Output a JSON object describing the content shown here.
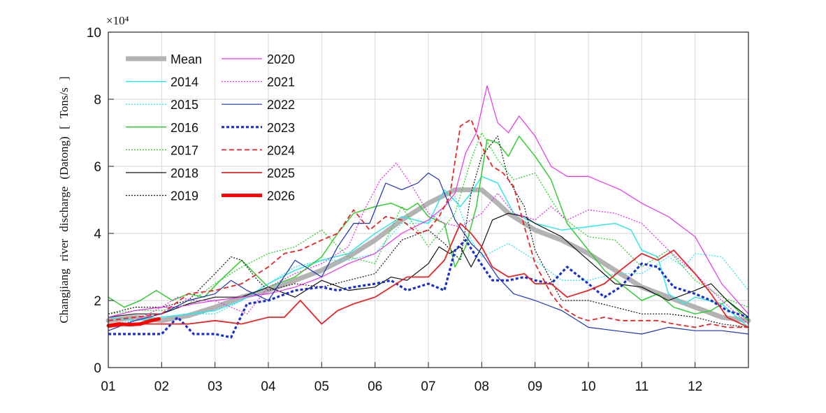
{
  "chart_data": {
    "type": "line",
    "ylabel": "Changjiang river discharge (Datong) [ Tons/s ]",
    "y_multiplier": "×10⁴",
    "xlim": [
      0,
      12
    ],
    "ylim": [
      0,
      10
    ],
    "x_ticks": [
      "01",
      "02",
      "03",
      "04",
      "05",
      "06",
      "07",
      "08",
      "09",
      "10",
      "11",
      "12"
    ],
    "y_ticks": [
      "0",
      "2",
      "4",
      "6",
      "8",
      "10"
    ],
    "grid": true,
    "legend_position": "top-left",
    "series": [
      {
        "name": "Mean",
        "color": "#b3b3b3",
        "width": 7,
        "dash": "",
        "x": [
          0,
          0.5,
          1,
          1.5,
          2,
          2.5,
          3,
          3.5,
          4,
          4.5,
          5,
          5.5,
          6,
          6.5,
          7,
          7.3,
          7.5,
          7.8,
          8,
          8.5,
          9,
          9.5,
          10,
          10.5,
          11,
          11.5,
          12
        ],
        "y": [
          1.4,
          1.5,
          1.4,
          1.55,
          1.8,
          2.1,
          2.3,
          2.6,
          2.9,
          3.3,
          3.8,
          4.4,
          4.9,
          5.3,
          5.3,
          4.9,
          4.6,
          4.3,
          4.1,
          3.8,
          3.4,
          2.9,
          2.4,
          2.1,
          1.8,
          1.5,
          1.4
        ]
      },
      {
        "name": "2014",
        "color": "#33e6e6",
        "width": 1.5,
        "dash": "",
        "x": [
          0,
          0.5,
          1,
          1.5,
          2,
          2.5,
          3,
          3.5,
          4,
          4.5,
          5,
          5.5,
          6,
          6.3,
          6.6,
          6.8,
          7,
          7.3,
          7.6,
          8,
          8.5,
          9,
          9.5,
          9.8,
          10,
          10.3,
          10.5,
          10.8,
          11,
          11.5,
          12
        ],
        "y": [
          1.5,
          1.4,
          1.5,
          1.6,
          1.7,
          2.0,
          2.5,
          2.9,
          3.2,
          3.4,
          4.0,
          4.5,
          4.3,
          5.3,
          4.8,
          5.2,
          5.7,
          5.5,
          4.6,
          4.3,
          4.1,
          4.2,
          4.3,
          4.1,
          3.5,
          3.3,
          2.2,
          1.9,
          2.1,
          1.9,
          1.2
        ]
      },
      {
        "name": "2015",
        "color": "#33e6e6",
        "width": 1.3,
        "dash": "2 2",
        "x": [
          0,
          0.5,
          1,
          1.5,
          2,
          2.5,
          3,
          3.5,
          4,
          4.5,
          5,
          5.5,
          6,
          6.5,
          6.8,
          7,
          7.5,
          8,
          8.5,
          9,
          9.5,
          10,
          10.3,
          10.5,
          10.8,
          11,
          11.5,
          11.8,
          12
        ],
        "y": [
          1.3,
          1.4,
          1.5,
          1.6,
          1.6,
          2.0,
          2.5,
          3.0,
          3.2,
          3.2,
          3.4,
          4.3,
          4.3,
          5.1,
          3.8,
          3.3,
          3.7,
          3.2,
          2.6,
          2.6,
          2.8,
          2.8,
          3.1,
          3.3,
          3.0,
          3.4,
          3.3,
          2.7,
          2.3
        ]
      },
      {
        "name": "2016",
        "color": "#33cc33",
        "width": 1.5,
        "dash": "",
        "x": [
          0,
          0.3,
          0.6,
          0.9,
          1.2,
          1.5,
          1.8,
          2.1,
          2.5,
          3,
          3.5,
          4,
          4.3,
          4.6,
          5,
          5.3,
          5.6,
          5.8,
          6,
          6.3,
          6.5,
          6.7,
          6.9,
          7.1,
          7.3,
          7.5,
          7.7,
          8,
          8.3,
          8.6,
          9,
          9.3,
          9.6,
          10,
          10.3,
          10.6,
          11,
          11.3,
          11.6,
          12
        ],
        "y": [
          2.1,
          1.8,
          2.0,
          2.3,
          2.0,
          2.2,
          2.1,
          2.6,
          3.2,
          2.4,
          2.7,
          3.3,
          4.0,
          4.6,
          4.8,
          4.9,
          4.7,
          4.9,
          4.5,
          4.3,
          3.0,
          3.6,
          4.8,
          6.8,
          6.7,
          6.3,
          6.9,
          6.3,
          5.6,
          4.3,
          3.5,
          2.9,
          2.5,
          2.0,
          2.2,
          1.8,
          1.6,
          1.7,
          2.0,
          1.4
        ]
      },
      {
        "name": "2017",
        "color": "#33cc33",
        "width": 1.3,
        "dash": "2 2",
        "x": [
          0,
          0.5,
          1,
          1.5,
          2,
          2.5,
          3,
          3.5,
          4,
          4.5,
          5,
          5.5,
          6,
          6.5,
          6.8,
          7,
          7.3,
          7.6,
          8,
          8.5,
          9,
          9.5,
          10,
          10.5,
          11,
          11.5,
          12
        ],
        "y": [
          1.6,
          1.7,
          1.7,
          1.9,
          2.5,
          3.0,
          3.4,
          3.6,
          4.1,
          3.3,
          3.1,
          4.8,
          3.6,
          4.6,
          6.2,
          7.0,
          6.2,
          5.6,
          5.8,
          4.5,
          3.9,
          3.8,
          3.0,
          3.5,
          2.6,
          2.1,
          1.8
        ]
      },
      {
        "name": "2018",
        "color": "#111111",
        "width": 1.2,
        "dash": "",
        "x": [
          0,
          0.5,
          1,
          1.5,
          2,
          2.5,
          3,
          3.5,
          4,
          4.5,
          5,
          5.3,
          5.6,
          6,
          6.2,
          6.4,
          6.6,
          6.8,
          7,
          7.2,
          7.5,
          7.8,
          8,
          8.5,
          9,
          9.5,
          10,
          10.5,
          11,
          11.3,
          11.6,
          12
        ],
        "y": [
          1.5,
          1.6,
          1.6,
          1.9,
          2.1,
          2.1,
          2.4,
          2.1,
          2.6,
          2.3,
          2.4,
          2.7,
          2.6,
          3.1,
          3.6,
          3.4,
          3.6,
          3.0,
          3.6,
          4.4,
          4.6,
          4.5,
          4.3,
          3.9,
          3.2,
          2.5,
          2.4,
          2.0,
          2.3,
          2.5,
          2.0,
          1.5
        ]
      },
      {
        "name": "2019",
        "color": "#111111",
        "width": 1.2,
        "dash": "2 2",
        "x": [
          0,
          0.5,
          1,
          1.5,
          2,
          2.3,
          2.5,
          2.8,
          3,
          3.5,
          4,
          4.5,
          5,
          5.5,
          6,
          6.3,
          6.6,
          6.8,
          7,
          7.3,
          7.5,
          7.8,
          8,
          8.5,
          9,
          9.5,
          10,
          10.5,
          11,
          11.5,
          12
        ],
        "y": [
          1.6,
          1.8,
          1.8,
          2.0,
          2.8,
          3.3,
          3.2,
          2.6,
          2.3,
          2.5,
          2.4,
          2.6,
          2.8,
          3.8,
          4.1,
          3.7,
          3.2,
          5.2,
          6.3,
          6.9,
          5.6,
          4.8,
          3.5,
          2.0,
          2.0,
          1.8,
          1.6,
          1.6,
          1.5,
          1.3,
          1.2
        ]
      },
      {
        "name": "2020",
        "color": "#e633e6",
        "width": 1.2,
        "dash": "",
        "x": [
          0,
          0.5,
          1,
          1.3,
          1.6,
          2,
          2.5,
          3,
          3.5,
          4,
          4.5,
          5,
          5.5,
          6,
          6.3,
          6.5,
          6.7,
          6.9,
          7.1,
          7.3,
          7.5,
          7.7,
          8,
          8.3,
          8.6,
          9,
          9.3,
          9.6,
          10,
          10.5,
          11,
          11.5,
          12
        ],
        "y": [
          1.5,
          1.7,
          1.8,
          1.8,
          1.9,
          2.0,
          2.1,
          2.2,
          2.4,
          2.7,
          3.1,
          3.4,
          4.0,
          4.4,
          4.8,
          5.2,
          6.4,
          7.0,
          8.4,
          7.3,
          7.0,
          7.5,
          6.9,
          6.0,
          5.7,
          5.7,
          5.5,
          5.3,
          4.9,
          4.5,
          3.9,
          2.5,
          1.6
        ]
      },
      {
        "name": "2021",
        "color": "#e633e6",
        "width": 1.3,
        "dash": "2 2",
        "x": [
          0,
          0.5,
          1,
          1.3,
          1.6,
          2,
          2.3,
          2.6,
          3,
          3.5,
          4,
          4.5,
          4.8,
          5.1,
          5.4,
          5.7,
          6,
          6.3,
          6.6,
          7,
          7.3,
          7.6,
          8,
          8.3,
          8.6,
          9,
          9.5,
          10,
          10.5,
          11,
          11.5,
          12
        ],
        "y": [
          1.2,
          1.4,
          1.8,
          2.1,
          2.0,
          2.0,
          1.8,
          1.6,
          2.4,
          2.8,
          3.1,
          3.6,
          4.7,
          5.6,
          6.1,
          5.4,
          4.6,
          4.3,
          4.2,
          4.6,
          5.2,
          4.6,
          4.4,
          4.8,
          4.4,
          4.7,
          4.6,
          4.3,
          3.5,
          2.8,
          2.0,
          1.3
        ]
      },
      {
        "name": "2022",
        "color": "#1a33b3",
        "width": 1.2,
        "dash": "",
        "x": [
          0,
          0.5,
          1,
          1.5,
          2,
          2.3,
          2.6,
          3,
          3.5,
          4,
          4.3,
          4.6,
          4.9,
          5.2,
          5.5,
          5.8,
          6,
          6.2,
          6.5,
          6.8,
          7,
          7.3,
          7.6,
          8,
          8.5,
          9,
          9.5,
          10,
          10.5,
          11,
          11.5,
          12
        ],
        "y": [
          1.1,
          1.4,
          1.6,
          2.0,
          2.2,
          2.6,
          2.3,
          2.0,
          3.2,
          2.7,
          3.6,
          4.3,
          4.3,
          5.5,
          5.3,
          5.5,
          5.8,
          5.6,
          4.4,
          3.7,
          3.4,
          2.7,
          2.2,
          2.0,
          1.7,
          1.2,
          1.1,
          1.0,
          1.2,
          1.1,
          1.1,
          1.0
        ]
      },
      {
        "name": "2023",
        "color": "#1a2ecc",
        "width": 3.2,
        "dash": "4 3",
        "x": [
          0,
          0.5,
          1,
          1.3,
          1.6,
          2,
          2.3,
          2.6,
          3,
          3.5,
          4,
          4.3,
          4.6,
          5,
          5.3,
          5.6,
          6,
          6.3,
          6.5,
          6.7,
          6.9,
          7.2,
          7.5,
          7.8,
          8,
          8.3,
          8.6,
          9,
          9.3,
          9.6,
          10,
          10.3,
          10.6,
          11,
          11.3,
          11.6,
          12
        ],
        "y": [
          1.0,
          1.0,
          1.0,
          1.5,
          1.0,
          1.0,
          0.9,
          1.9,
          2.0,
          2.3,
          2.4,
          2.3,
          2.4,
          2.5,
          2.6,
          2.3,
          2.5,
          2.3,
          3.5,
          3.8,
          3.3,
          2.6,
          2.6,
          2.7,
          2.6,
          2.5,
          3.0,
          2.5,
          2.1,
          2.4,
          3.1,
          3.0,
          2.4,
          2.2,
          2.0,
          1.7,
          1.5
        ]
      },
      {
        "name": "2024",
        "color": "#e62626",
        "width": 1.8,
        "dash": "7 4",
        "x": [
          0,
          0.5,
          1,
          1.5,
          2,
          2.5,
          3,
          3.3,
          3.6,
          4,
          4.3,
          4.6,
          4.9,
          5.2,
          5.5,
          5.8,
          6,
          6.2,
          6.4,
          6.6,
          6.8,
          7,
          7.2,
          7.4,
          7.6,
          7.8,
          8,
          8.3,
          8.5,
          8.8,
          9,
          9.3,
          9.6,
          10,
          10.3,
          10.6,
          11,
          11.3,
          11.6,
          12
        ],
        "y": [
          1.4,
          1.5,
          1.6,
          2.2,
          2.3,
          2.5,
          3.0,
          3.4,
          3.5,
          3.8,
          4.0,
          4.7,
          4.1,
          4.5,
          4.4,
          4.0,
          4.1,
          4.5,
          5.1,
          7.2,
          7.4,
          6.6,
          6.0,
          5.8,
          5.4,
          4.2,
          3.1,
          2.2,
          1.8,
          1.5,
          1.4,
          1.5,
          1.4,
          1.4,
          1.4,
          1.3,
          1.2,
          1.3,
          1.2,
          1.2
        ]
      },
      {
        "name": "2025",
        "color": "#e62626",
        "width": 1.8,
        "dash": "",
        "x": [
          0,
          0.5,
          1,
          1.5,
          2,
          2.5,
          3,
          3.3,
          3.6,
          4,
          4.3,
          4.6,
          5,
          5.3,
          5.6,
          6,
          6.3,
          6.6,
          6.8,
          7,
          7.2,
          7.5,
          7.8,
          8,
          8.3,
          8.6,
          9,
          9.3,
          9.6,
          10,
          10.3,
          10.6,
          11,
          11.3,
          11.6,
          12
        ],
        "y": [
          1.2,
          1.3,
          1.3,
          1.3,
          1.4,
          1.3,
          1.5,
          1.5,
          2.0,
          1.3,
          1.7,
          1.9,
          2.1,
          2.4,
          2.7,
          2.7,
          3.2,
          4.3,
          4.0,
          3.6,
          3.0,
          2.7,
          2.8,
          2.5,
          2.5,
          2.1,
          2.3,
          2.5,
          2.9,
          3.4,
          3.2,
          3.5,
          2.8,
          2.2,
          1.5,
          1.2
        ]
      },
      {
        "name": "2026",
        "color": "#ff0000",
        "width": 5,
        "dash": "",
        "x": [
          0,
          0.2,
          0.4,
          0.6,
          0.8,
          0.95
        ],
        "y": [
          1.25,
          1.3,
          1.28,
          1.3,
          1.4,
          1.45
        ]
      }
    ]
  }
}
